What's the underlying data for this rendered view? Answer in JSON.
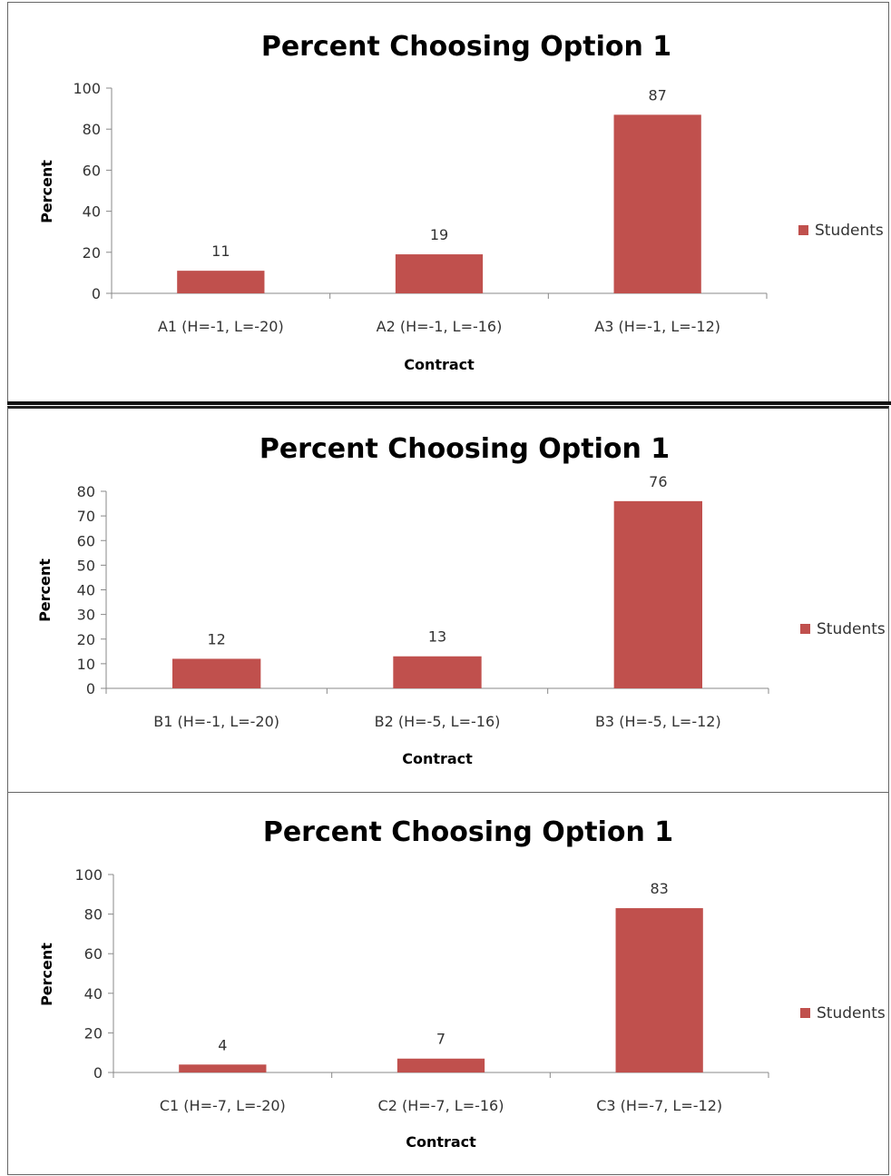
{
  "chart_data": [
    {
      "type": "bar",
      "title": "Percent Choosing Option 1",
      "xlabel": "Contract",
      "ylabel": "Percent",
      "categories": [
        "A1 (H=-1, L=-20)",
        "A2 (H=-1, L=-16)",
        "A3 (H=-1, L=-12)"
      ],
      "series": [
        {
          "name": "Students",
          "values": [
            11,
            19,
            87
          ]
        }
      ],
      "data_labels": [
        "11",
        "19",
        "87"
      ],
      "ylim": [
        0,
        100
      ],
      "yticks": [
        0,
        20,
        40,
        60,
        80,
        100
      ],
      "grid": false,
      "legend": "right",
      "bar_color": "#C0504D"
    },
    {
      "type": "bar",
      "title": "Percent Choosing Option 1",
      "xlabel": "Contract",
      "ylabel": "Percent",
      "categories": [
        "B1 (H=-1, L=-20)",
        "B2 (H=-5, L=-16)",
        "B3 (H=-5, L=-12)"
      ],
      "series": [
        {
          "name": "Students",
          "values": [
            12,
            13,
            76
          ]
        }
      ],
      "data_labels": [
        "12",
        "13",
        "76"
      ],
      "ylim": [
        0,
        80
      ],
      "yticks": [
        0,
        10,
        20,
        30,
        40,
        50,
        60,
        70,
        80
      ],
      "grid": false,
      "legend": "right",
      "bar_color": "#C0504D"
    },
    {
      "type": "bar",
      "title": "Percent Choosing Option 1",
      "xlabel": "Contract",
      "ylabel": "Percent",
      "categories": [
        "C1 (H=-7, L=-20)",
        "C2 (H=-7, L=-16)",
        "C3 (H=-7, L=-12)"
      ],
      "series": [
        {
          "name": "Students",
          "values": [
            4,
            7,
            83
          ]
        }
      ],
      "data_labels": [
        "4",
        "7",
        "83"
      ],
      "ylim": [
        0,
        100
      ],
      "yticks": [
        0,
        20,
        40,
        60,
        80,
        100
      ],
      "grid": false,
      "legend": "right",
      "bar_color": "#C0504D"
    }
  ]
}
